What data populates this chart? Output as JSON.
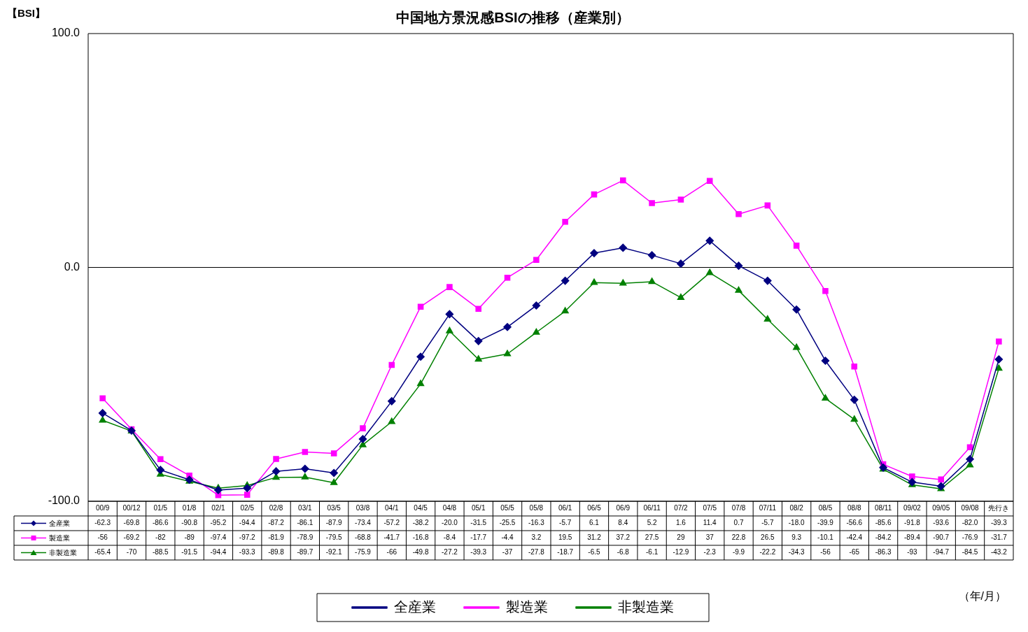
{
  "chart_data": {
    "type": "line",
    "title": "中国地方景況感BSIの推移（産業別）",
    "ylabel": "【BSI】",
    "categories": [
      "00/9",
      "00/12",
      "01/5",
      "01/8",
      "02/1",
      "02/5",
      "02/8",
      "03/1",
      "03/5",
      "03/8",
      "04/1",
      "04/5",
      "04/8",
      "05/1",
      "05/5",
      "05/8",
      "06/1",
      "06/5",
      "06/9",
      "06/11",
      "07/2",
      "07/5",
      "07/8",
      "07/11",
      "08/2",
      "08/5",
      "08/8",
      "08/11",
      "09/02",
      "09/05",
      "09/08",
      "先行き"
    ],
    "ylim": [
      -100,
      100
    ],
    "yticks": [
      {
        "value": -100,
        "label": "-100.0"
      },
      {
        "value": 0,
        "label": "0.0"
      },
      {
        "value": 100,
        "label": "100.0"
      }
    ],
    "grid": false,
    "legend": "bottom",
    "ref_lines": [
      {
        "axis": "y",
        "value": 0,
        "color": "#000000"
      }
    ],
    "annotations": [
      "（年/月）"
    ],
    "series": [
      {
        "name": "全産業",
        "color": "#000080",
        "marker": "diamond",
        "line_style": "solid",
        "values": [
          -62.3,
          -69.8,
          -86.6,
          -90.8,
          -95.2,
          -94.4,
          -87.2,
          -86.1,
          -87.9,
          -73.4,
          -57.2,
          -38.2,
          -20.0,
          -31.5,
          -25.5,
          -16.3,
          -5.7,
          6.1,
          8.4,
          5.2,
          1.6,
          11.4,
          0.7,
          -5.7,
          -18.0,
          -39.9,
          -56.6,
          -85.6,
          -91.8,
          -93.6,
          -82.0,
          -39.3
        ],
        "value_labels": [
          "-62.3",
          "-69.8",
          "-86.6",
          "-90.8",
          "-95.2",
          "-94.4",
          "-87.2",
          "-86.1",
          "-87.9",
          "-73.4",
          "-57.2",
          "-38.2",
          "-20.0",
          "-31.5",
          "-25.5",
          "-16.3",
          "-5.7",
          "6.1",
          "8.4",
          "5.2",
          "1.6",
          "11.4",
          "0.7",
          "-5.7",
          "-18.0",
          "-39.9",
          "-56.6",
          "-85.6",
          "-91.8",
          "-93.6",
          "-82.0",
          "-39.3"
        ]
      },
      {
        "name": "製造業",
        "color": "#ff00ff",
        "marker": "square",
        "line_style": "solid",
        "values": [
          -56,
          -69.2,
          -82,
          -89,
          -97.4,
          -97.2,
          -81.9,
          -78.9,
          -79.5,
          -68.8,
          -41.7,
          -16.8,
          -8.4,
          -17.7,
          -4.4,
          3.2,
          19.5,
          31.2,
          37.2,
          27.5,
          29,
          37,
          22.8,
          26.5,
          9.3,
          -10.1,
          -42.4,
          -84.2,
          -89.4,
          -90.7,
          -76.9,
          -31.7
        ],
        "value_labels": [
          "-56",
          "-69.2",
          "-82",
          "-89",
          "-97.4",
          "-97.2",
          "-81.9",
          "-78.9",
          "-79.5",
          "-68.8",
          "-41.7",
          "-16.8",
          "-8.4",
          "-17.7",
          "-4.4",
          "3.2",
          "19.5",
          "31.2",
          "37.2",
          "27.5",
          "29",
          "37",
          "22.8",
          "26.5",
          "9.3",
          "-10.1",
          "-42.4",
          "-84.2",
          "-89.4",
          "-90.7",
          "-76.9",
          "-31.7"
        ]
      },
      {
        "name": "非製造業",
        "color": "#008000",
        "marker": "triangle",
        "line_style": "solid",
        "values": [
          -65.4,
          -70,
          -88.5,
          -91.5,
          -94.4,
          -93.3,
          -89.8,
          -89.7,
          -92.1,
          -75.9,
          -66,
          -49.8,
          -27.2,
          -39.3,
          -37,
          -27.8,
          -18.7,
          -6.5,
          -6.8,
          -6.1,
          -12.9,
          -2.3,
          -9.9,
          -22.2,
          -34.3,
          -56,
          -65,
          -86.3,
          -93,
          -94.7,
          -84.5,
          -43.2
        ],
        "value_labels": [
          "-65.4",
          "-70",
          "-88.5",
          "-91.5",
          "-94.4",
          "-93.3",
          "-89.8",
          "-89.7",
          "-92.1",
          "-75.9",
          "-66",
          "-49.8",
          "-27.2",
          "-39.3",
          "-37",
          "-27.8",
          "-18.7",
          "-6.5",
          "-6.8",
          "-6.1",
          "-12.9",
          "-2.3",
          "-9.9",
          "-22.2",
          "-34.3",
          "-56",
          "-65",
          "-86.3",
          "-93",
          "-94.7",
          "-84.5",
          "-43.2"
        ]
      }
    ]
  }
}
